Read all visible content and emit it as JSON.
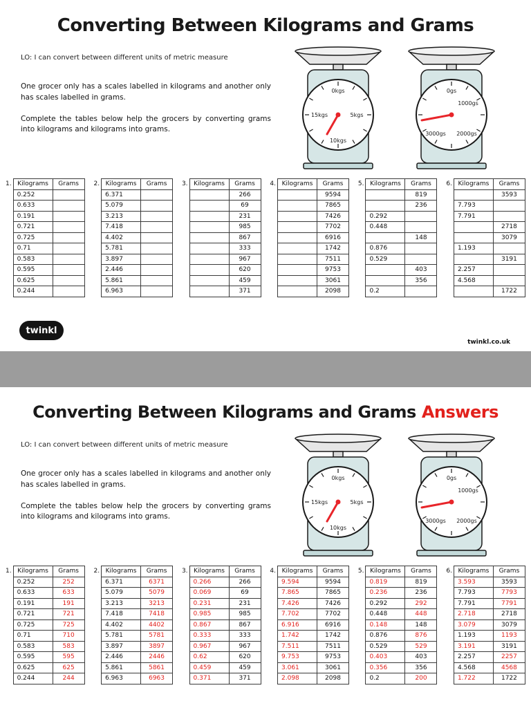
{
  "colors": {
    "answer_red": "#e2211c",
    "needle_red": "#e8252a",
    "viewer_gray": "#9c9c9c",
    "scale_body": "#d6e6e6"
  },
  "scales": {
    "kg_dial": {
      "top": "0kgs",
      "right": "5kgs",
      "bottom": "10kgs",
      "left": "15kgs"
    },
    "g_dial": {
      "top": "0gs",
      "upper_right": "1000gs",
      "lower_right": "2000gs",
      "lower_left": "3000gs"
    }
  },
  "footer": {
    "logo_text": "twinkl",
    "website": "twinkl.co.uk"
  },
  "page1": {
    "title": "Converting Between Kilograms and Grams",
    "lo": "LO: I can convert between different units of metric measure",
    "paragraph1": "One grocer only has a scales labelled in kilograms and another only has scales labelled in grams.",
    "paragraph2": "Complete the tables below help the grocers by converting grams into kilograms and kilograms into grams.",
    "tables": [
      {
        "label": "1.",
        "header": [
          "Kilograms",
          "Grams"
        ],
        "rows": [
          [
            "0.252",
            "",
            0,
            0
          ],
          [
            "0.633",
            "",
            0,
            0
          ],
          [
            "0.191",
            "",
            0,
            0
          ],
          [
            "0.721",
            "",
            0,
            0
          ],
          [
            "0.725",
            "",
            0,
            0
          ],
          [
            "0.71",
            "",
            0,
            0
          ],
          [
            "0.583",
            "",
            0,
            0
          ],
          [
            "0.595",
            "",
            0,
            0
          ],
          [
            "0.625",
            "",
            0,
            0
          ],
          [
            "0.244",
            "",
            0,
            0
          ]
        ]
      },
      {
        "label": "2.",
        "header": [
          "Kilograms",
          "Grams"
        ],
        "rows": [
          [
            "6.371",
            "",
            0,
            0
          ],
          [
            "5.079",
            "",
            0,
            0
          ],
          [
            "3.213",
            "",
            0,
            0
          ],
          [
            "7.418",
            "",
            0,
            0
          ],
          [
            "4.402",
            "",
            0,
            0
          ],
          [
            "5.781",
            "",
            0,
            0
          ],
          [
            "3.897",
            "",
            0,
            0
          ],
          [
            "2.446",
            "",
            0,
            0
          ],
          [
            "5.861",
            "",
            0,
            0
          ],
          [
            "6.963",
            "",
            0,
            0
          ]
        ]
      },
      {
        "label": "3.",
        "header": [
          "Kilograms",
          "Grams"
        ],
        "rows": [
          [
            "",
            "266",
            0,
            0
          ],
          [
            "",
            "69",
            0,
            0
          ],
          [
            "",
            "231",
            0,
            0
          ],
          [
            "",
            "985",
            0,
            0
          ],
          [
            "",
            "867",
            0,
            0
          ],
          [
            "",
            "333",
            0,
            0
          ],
          [
            "",
            "967",
            0,
            0
          ],
          [
            "",
            "620",
            0,
            0
          ],
          [
            "",
            "459",
            0,
            0
          ],
          [
            "",
            "371",
            0,
            0
          ]
        ]
      },
      {
        "label": "4.",
        "header": [
          "Kilograms",
          "Grams"
        ],
        "rows": [
          [
            "",
            "9594",
            0,
            0
          ],
          [
            "",
            "7865",
            0,
            0
          ],
          [
            "",
            "7426",
            0,
            0
          ],
          [
            "",
            "7702",
            0,
            0
          ],
          [
            "",
            "6916",
            0,
            0
          ],
          [
            "",
            "1742",
            0,
            0
          ],
          [
            "",
            "7511",
            0,
            0
          ],
          [
            "",
            "9753",
            0,
            0
          ],
          [
            "",
            "3061",
            0,
            0
          ],
          [
            "",
            "2098",
            0,
            0
          ]
        ]
      },
      {
        "label": "5.",
        "header": [
          "Kilograms",
          "Grams"
        ],
        "rows": [
          [
            "",
            "819",
            0,
            0
          ],
          [
            "",
            "236",
            0,
            0
          ],
          [
            "0.292",
            "",
            0,
            0
          ],
          [
            "0.448",
            "",
            0,
            0
          ],
          [
            "",
            "148",
            0,
            0
          ],
          [
            "0.876",
            "",
            0,
            0
          ],
          [
            "0.529",
            "",
            0,
            0
          ],
          [
            "",
            "403",
            0,
            0
          ],
          [
            "",
            "356",
            0,
            0
          ],
          [
            "0.2",
            "",
            0,
            0
          ]
        ]
      },
      {
        "label": "6.",
        "header": [
          "Kilograms",
          "Grams"
        ],
        "rows": [
          [
            "",
            "3593",
            0,
            0
          ],
          [
            "7.793",
            "",
            0,
            0
          ],
          [
            "7.791",
            "",
            0,
            0
          ],
          [
            "",
            "2718",
            0,
            0
          ],
          [
            "",
            "3079",
            0,
            0
          ],
          [
            "1.193",
            "",
            0,
            0
          ],
          [
            "",
            "3191",
            0,
            0
          ],
          [
            "2.257",
            "",
            0,
            0
          ],
          [
            "4.568",
            "",
            0,
            0
          ],
          [
            "",
            "1722",
            0,
            0
          ]
        ]
      }
    ]
  },
  "page2": {
    "title": "Converting Between Kilograms and Grams",
    "answers_label": "Answers",
    "lo": "LO: I can convert between different units of metric measure",
    "paragraph1": "One grocer only has a scales labelled in kilograms and another only has scales labelled in grams.",
    "paragraph2": "Complete the tables below help the grocers by converting grams into kilograms and kilograms into grams.",
    "tables": [
      {
        "label": "1.",
        "header": [
          "Kilograms",
          "Grams"
        ],
        "rows": [
          [
            "0.252",
            "252",
            0,
            1
          ],
          [
            "0.633",
            "633",
            0,
            1
          ],
          [
            "0.191",
            "191",
            0,
            1
          ],
          [
            "0.721",
            "721",
            0,
            1
          ],
          [
            "0.725",
            "725",
            0,
            1
          ],
          [
            "0.71",
            "710",
            0,
            1
          ],
          [
            "0.583",
            "583",
            0,
            1
          ],
          [
            "0.595",
            "595",
            0,
            1
          ],
          [
            "0.625",
            "625",
            0,
            1
          ],
          [
            "0.244",
            "244",
            0,
            1
          ]
        ]
      },
      {
        "label": "2.",
        "header": [
          "Kilograms",
          "Grams"
        ],
        "rows": [
          [
            "6.371",
            "6371",
            0,
            1
          ],
          [
            "5.079",
            "5079",
            0,
            1
          ],
          [
            "3.213",
            "3213",
            0,
            1
          ],
          [
            "7.418",
            "7418",
            0,
            1
          ],
          [
            "4.402",
            "4402",
            0,
            1
          ],
          [
            "5.781",
            "5781",
            0,
            1
          ],
          [
            "3.897",
            "3897",
            0,
            1
          ],
          [
            "2.446",
            "2446",
            0,
            1
          ],
          [
            "5.861",
            "5861",
            0,
            1
          ],
          [
            "6.963",
            "6963",
            0,
            1
          ]
        ]
      },
      {
        "label": "3.",
        "header": [
          "Kilograms",
          "Grams"
        ],
        "rows": [
          [
            "0.266",
            "266",
            1,
            0
          ],
          [
            "0.069",
            "69",
            1,
            0
          ],
          [
            "0.231",
            "231",
            1,
            0
          ],
          [
            "0.985",
            "985",
            1,
            0
          ],
          [
            "0.867",
            "867",
            1,
            0
          ],
          [
            "0.333",
            "333",
            1,
            0
          ],
          [
            "0.967",
            "967",
            1,
            0
          ],
          [
            "0.62",
            "620",
            1,
            0
          ],
          [
            "0.459",
            "459",
            1,
            0
          ],
          [
            "0.371",
            "371",
            1,
            0
          ]
        ]
      },
      {
        "label": "4.",
        "header": [
          "Kilograms",
          "Grams"
        ],
        "rows": [
          [
            "9.594",
            "9594",
            1,
            0
          ],
          [
            "7.865",
            "7865",
            1,
            0
          ],
          [
            "7.426",
            "7426",
            1,
            0
          ],
          [
            "7.702",
            "7702",
            1,
            0
          ],
          [
            "6.916",
            "6916",
            1,
            0
          ],
          [
            "1.742",
            "1742",
            1,
            0
          ],
          [
            "7.511",
            "7511",
            1,
            0
          ],
          [
            "9.753",
            "9753",
            1,
            0
          ],
          [
            "3.061",
            "3061",
            1,
            0
          ],
          [
            "2.098",
            "2098",
            1,
            0
          ]
        ]
      },
      {
        "label": "5.",
        "header": [
          "Kilograms",
          "Grams"
        ],
        "rows": [
          [
            "0.819",
            "819",
            1,
            0
          ],
          [
            "0.236",
            "236",
            1,
            0
          ],
          [
            "0.292",
            "292",
            0,
            1
          ],
          [
            "0.448",
            "448",
            0,
            1
          ],
          [
            "0.148",
            "148",
            1,
            0
          ],
          [
            "0.876",
            "876",
            0,
            1
          ],
          [
            "0.529",
            "529",
            0,
            1
          ],
          [
            "0.403",
            "403",
            1,
            0
          ],
          [
            "0.356",
            "356",
            1,
            0
          ],
          [
            "0.2",
            "200",
            0,
            1
          ]
        ]
      },
      {
        "label": "6.",
        "header": [
          "Kilograms",
          "Grams"
        ],
        "rows": [
          [
            "3.593",
            "3593",
            1,
            0
          ],
          [
            "7.793",
            "7793",
            0,
            1
          ],
          [
            "7.791",
            "7791",
            0,
            1
          ],
          [
            "2.718",
            "2718",
            1,
            0
          ],
          [
            "3.079",
            "3079",
            1,
            0
          ],
          [
            "1.193",
            "1193",
            0,
            1
          ],
          [
            "3.191",
            "3191",
            1,
            0
          ],
          [
            "2.257",
            "2257",
            0,
            1
          ],
          [
            "4.568",
            "4568",
            0,
            1
          ],
          [
            "1.722",
            "1722",
            1,
            0
          ]
        ]
      }
    ]
  }
}
